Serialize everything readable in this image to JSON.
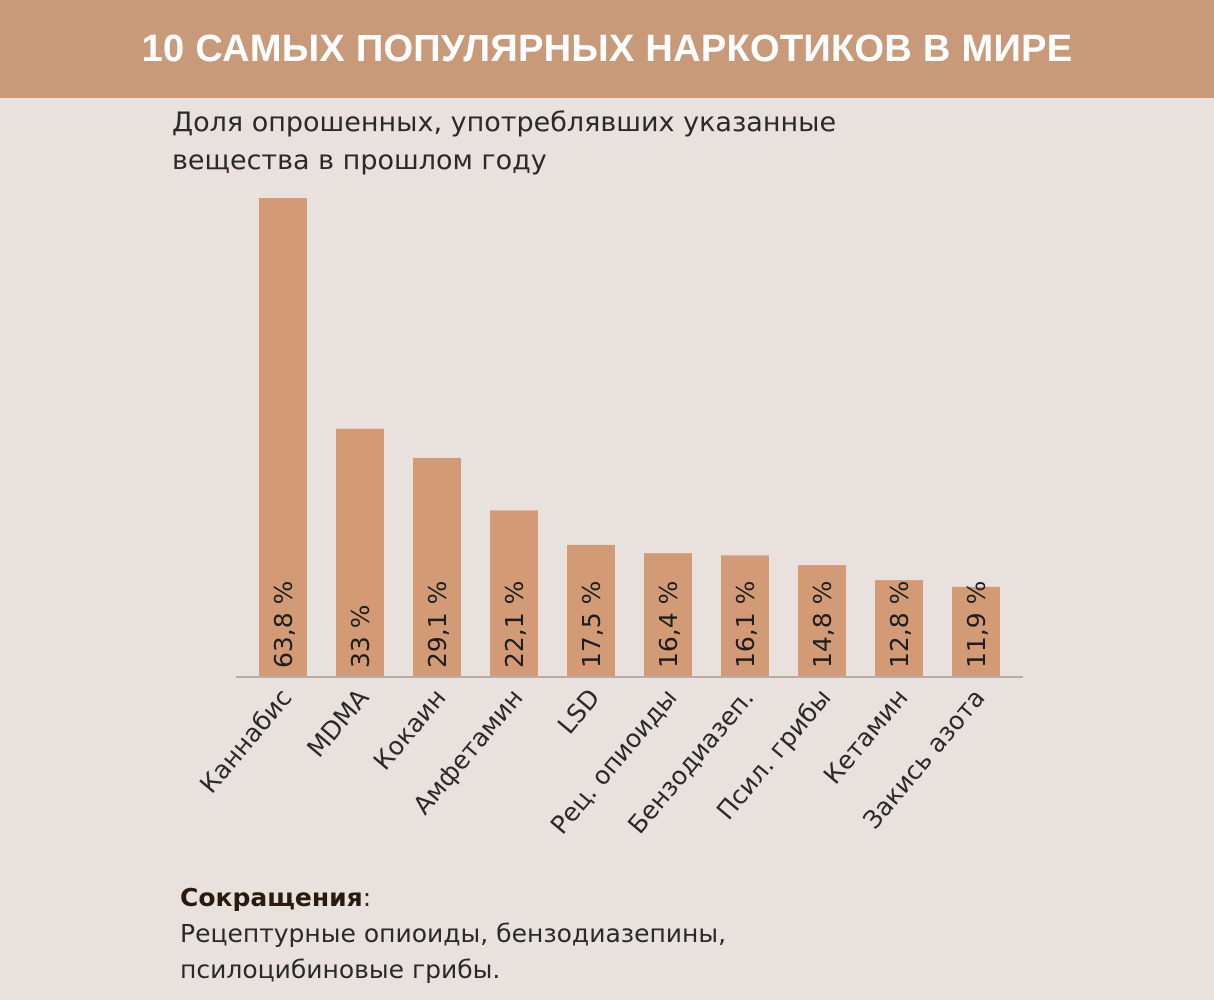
{
  "colors": {
    "header": "#c99a79",
    "bar": "#d29b76",
    "background": "#e9e1dd",
    "axis": "#b9aca6"
  },
  "chart_data": {
    "type": "bar",
    "title": "10 САМЫХ ПОПУЛЯРНЫХ НАРКОТИКОВ В МИРЕ",
    "subtitle": "Доля опрошенных, употреблявших указанные вещества в прошлом году",
    "categories": [
      "Каннабис",
      "MDMA",
      "Кокаин",
      "Амфетамин",
      "LSD",
      "Рец. опиоиды",
      "Бензодиазеп.",
      "Псил. грибы",
      "Кетамин",
      "Закись азота"
    ],
    "values": [
      63.8,
      33,
      29.1,
      22.1,
      17.5,
      16.4,
      16.1,
      14.8,
      12.8,
      11.9
    ],
    "data_labels": [
      "63,8 %",
      "33 %",
      "29,1 %",
      "22,1 %",
      "17,5 %",
      "16,4 %",
      "16,1 %",
      "14,8 %",
      "12,8 %",
      "11,9 %"
    ],
    "xlabel": "",
    "ylabel": "",
    "ylim": [
      0,
      63.8
    ],
    "grid": false
  },
  "notes": {
    "heading": "Сокращения",
    "colon": ":",
    "line1": "Рецептурные опиоиды, бензодиазепины,",
    "line2": "псилоцибиновые грибы."
  }
}
